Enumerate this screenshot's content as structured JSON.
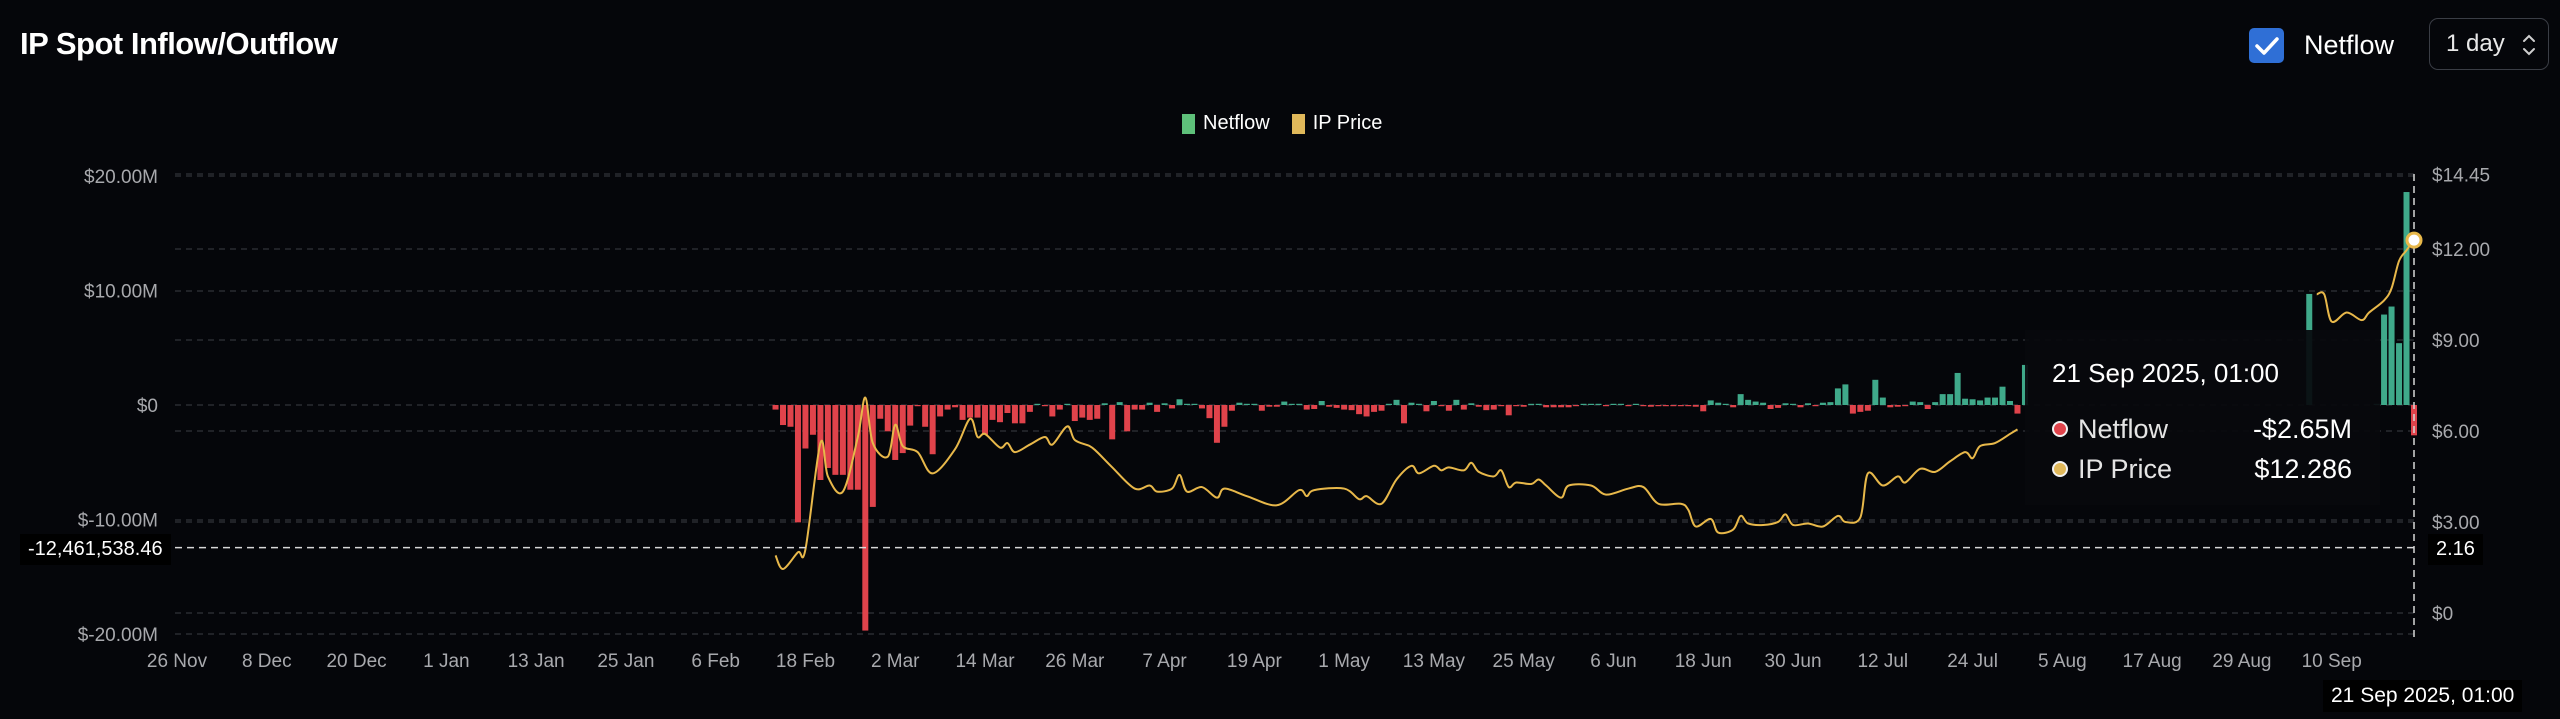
{
  "header": {
    "title": "IP Spot Inflow/Outflow",
    "netflow_toggle": {
      "label": "Netflow",
      "checked": true
    },
    "interval_select": {
      "value": "1 day"
    }
  },
  "colors": {
    "background": "#05060a",
    "netflow_positive": "#3fa98a",
    "netflow_negative": "#e0434b",
    "price_line": "#e8b84a",
    "legend_netflow": "#5ec07a",
    "legend_price": "#e0b85a",
    "checkbox": "#2f6fd6"
  },
  "chart_data": {
    "type": "bar+line",
    "legend": [
      {
        "name": "Netflow",
        "color": "#5ec07a"
      },
      {
        "name": "IP Price",
        "color": "#e0b85a"
      }
    ],
    "legend_placement": "top-center",
    "grid": true,
    "xlim": [
      "2024-11-26",
      "2025-09-21"
    ],
    "x_ticks": [
      "26 Nov",
      "8 Dec",
      "20 Dec",
      "1 Jan",
      "13 Jan",
      "25 Jan",
      "6 Feb",
      "18 Feb",
      "2 Mar",
      "14 Mar",
      "26 Mar",
      "7 Apr",
      "19 Apr",
      "1 May",
      "13 May",
      "25 May",
      "6 Jun",
      "18 Jun",
      "30 Jun",
      "12 Jul",
      "24 Jul",
      "5 Aug",
      "17 Aug",
      "29 Aug",
      "10 Sep"
    ],
    "left_axis": {
      "unit": "USD millions",
      "ylim": [
        -21.5,
        20
      ],
      "ticks": [
        {
          "value": 20,
          "label": "$20.00M"
        },
        {
          "value": 10,
          "label": "$10.00M"
        },
        {
          "value": 0,
          "label": "$0"
        },
        {
          "value": -10,
          "label": "$-10.00M"
        },
        {
          "value": -20,
          "label": "$-20.00M"
        }
      ]
    },
    "right_axis": {
      "unit": "USD",
      "ylim": [
        -0.7,
        14.45
      ],
      "ticks": [
        {
          "value": 14.45,
          "label": "$14.45"
        },
        {
          "value": 12,
          "label": "$12.00"
        },
        {
          "value": 9,
          "label": "$9.00"
        },
        {
          "value": 6,
          "label": "$6.00"
        },
        {
          "value": 3,
          "label": "$3.00"
        },
        {
          "value": 0,
          "label": "$0"
        }
      ]
    },
    "netflow_musd": [
      [
        "2025-02-14",
        -0.4
      ],
      [
        "2025-02-15",
        -1.75
      ],
      [
        "2025-02-16",
        -1.9
      ],
      [
        "2025-02-17",
        -10.25
      ],
      [
        "2025-02-18",
        -3.8
      ],
      [
        "2025-02-19",
        -2.6
      ],
      [
        "2025-02-20",
        -6.55
      ],
      [
        "2025-02-21",
        -5.5
      ],
      [
        "2025-02-22",
        -6.1
      ],
      [
        "2025-02-23",
        -6.1
      ],
      [
        "2025-02-24",
        -7.4
      ],
      [
        "2025-02-25",
        -7.4
      ],
      [
        "2025-02-26",
        -19.7
      ],
      [
        "2025-02-27",
        -8.9
      ],
      [
        "2025-02-28",
        -1.2
      ],
      [
        "2025-03-01",
        -2.3
      ],
      [
        "2025-03-02",
        -4.8
      ],
      [
        "2025-03-03",
        -4.2
      ],
      [
        "2025-03-04",
        -1.8
      ],
      [
        "2025-03-05",
        -0.1
      ],
      [
        "2025-03-06",
        -1.9
      ],
      [
        "2025-03-07",
        -4.3
      ],
      [
        "2025-03-08",
        -1.0
      ],
      [
        "2025-03-09",
        -0.4
      ],
      [
        "2025-03-10",
        -0.2
      ],
      [
        "2025-03-11",
        -1.3
      ],
      [
        "2025-03-12",
        -1.1
      ],
      [
        "2025-03-13",
        -1.1
      ],
      [
        "2025-03-14",
        -2.6
      ],
      [
        "2025-03-15",
        -1.3
      ],
      [
        "2025-03-16",
        -1.5
      ],
      [
        "2025-03-17",
        -0.7
      ],
      [
        "2025-03-18",
        -1.6
      ],
      [
        "2025-03-19",
        -1.6
      ],
      [
        "2025-03-20",
        -0.6
      ],
      [
        "2025-03-21",
        0.1
      ],
      [
        "2025-03-22",
        -0.05
      ],
      [
        "2025-03-23",
        -1.0
      ],
      [
        "2025-03-24",
        -0.4
      ],
      [
        "2025-03-25",
        0.05
      ],
      [
        "2025-03-26",
        -1.4
      ],
      [
        "2025-03-27",
        -1.1
      ],
      [
        "2025-03-28",
        -1.3
      ],
      [
        "2025-03-29",
        -1.2
      ],
      [
        "2025-03-30",
        0.15
      ],
      [
        "2025-03-31",
        -3.0
      ],
      [
        "2025-04-01",
        0.25
      ],
      [
        "2025-04-02",
        -2.3
      ],
      [
        "2025-04-03",
        -0.4
      ],
      [
        "2025-04-04",
        -0.4
      ],
      [
        "2025-04-05",
        0.2
      ],
      [
        "2025-04-06",
        -0.6
      ],
      [
        "2025-04-07",
        0.15
      ],
      [
        "2025-04-08",
        -0.3
      ],
      [
        "2025-04-09",
        0.5
      ],
      [
        "2025-04-10",
        0.05
      ],
      [
        "2025-04-11",
        0
      ],
      [
        "2025-04-12",
        -0.3
      ],
      [
        "2025-04-13",
        -1.15
      ],
      [
        "2025-04-14",
        -3.3
      ],
      [
        "2025-04-15",
        -1.9
      ],
      [
        "2025-04-16",
        -0.5
      ],
      [
        "2025-04-17",
        0.2
      ],
      [
        "2025-04-18",
        0.05
      ],
      [
        "2025-04-19",
        0.05
      ],
      [
        "2025-04-20",
        -0.5
      ],
      [
        "2025-04-21",
        -0.15
      ],
      [
        "2025-04-22",
        -0.15
      ],
      [
        "2025-04-23",
        0.3
      ],
      [
        "2025-04-24",
        0
      ],
      [
        "2025-04-25",
        0
      ],
      [
        "2025-04-26",
        -0.4
      ],
      [
        "2025-04-27",
        -0.35
      ],
      [
        "2025-04-28",
        0.35
      ],
      [
        "2025-04-29",
        -0.15
      ],
      [
        "2025-04-30",
        -0.25
      ],
      [
        "2025-05-01",
        -0.4
      ],
      [
        "2025-05-02",
        -0.45
      ],
      [
        "2025-05-03",
        -0.8
      ],
      [
        "2025-05-04",
        -1.0
      ],
      [
        "2025-05-05",
        -0.6
      ],
      [
        "2025-05-06",
        -0.5
      ],
      [
        "2025-05-07",
        0.05
      ],
      [
        "2025-05-08",
        0.45
      ],
      [
        "2025-05-09",
        -1.6
      ],
      [
        "2025-05-10",
        0.2
      ],
      [
        "2025-05-11",
        0.05
      ],
      [
        "2025-05-12",
        -0.55
      ],
      [
        "2025-05-13",
        0.35
      ],
      [
        "2025-05-14",
        -0.05
      ],
      [
        "2025-05-15",
        -0.5
      ],
      [
        "2025-05-16",
        0.45
      ],
      [
        "2025-05-17",
        -0.4
      ],
      [
        "2025-05-18",
        0.15
      ],
      [
        "2025-05-19",
        -0.15
      ],
      [
        "2025-05-20",
        -0.45
      ],
      [
        "2025-05-21",
        -0.4
      ],
      [
        "2025-05-22",
        -0.1
      ],
      [
        "2025-05-23",
        -0.9
      ],
      [
        "2025-05-24",
        -0.05
      ],
      [
        "2025-05-25",
        -0.15
      ],
      [
        "2025-05-26",
        0.05
      ],
      [
        "2025-05-27",
        0
      ],
      [
        "2025-05-28",
        -0.2
      ],
      [
        "2025-05-29",
        -0.2
      ],
      [
        "2025-05-30",
        -0.2
      ],
      [
        "2025-05-31",
        -0.2
      ],
      [
        "2025-06-01",
        -0.05
      ],
      [
        "2025-06-02",
        0
      ],
      [
        "2025-06-03",
        0.05
      ],
      [
        "2025-06-04",
        0.05
      ],
      [
        "2025-06-05",
        -0.1
      ],
      [
        "2025-06-06",
        0.05
      ],
      [
        "2025-06-07",
        0.05
      ],
      [
        "2025-06-08",
        -0.05
      ],
      [
        "2025-06-09",
        0.1
      ],
      [
        "2025-06-10",
        -0.05
      ],
      [
        "2025-06-11",
        -0.15
      ],
      [
        "2025-06-12",
        -0.1
      ],
      [
        "2025-06-13",
        -0.1
      ],
      [
        "2025-06-14",
        -0.05
      ],
      [
        "2025-06-15",
        -0.1
      ],
      [
        "2025-06-16",
        -0.1
      ],
      [
        "2025-06-17",
        -0.15
      ],
      [
        "2025-06-18",
        -0.55
      ],
      [
        "2025-06-19",
        0.4
      ],
      [
        "2025-06-20",
        0.2
      ],
      [
        "2025-06-21",
        0
      ],
      [
        "2025-06-22",
        -0.2
      ],
      [
        "2025-06-23",
        0.95
      ],
      [
        "2025-06-24",
        0.45
      ],
      [
        "2025-06-25",
        0.3
      ],
      [
        "2025-06-26",
        0.2
      ],
      [
        "2025-06-27",
        -0.35
      ],
      [
        "2025-06-28",
        -0.25
      ],
      [
        "2025-06-29",
        0.15
      ],
      [
        "2025-06-30",
        0.1
      ],
      [
        "2025-07-01",
        -0.2
      ],
      [
        "2025-07-02",
        0.15
      ],
      [
        "2025-07-03",
        -0.05
      ],
      [
        "2025-07-04",
        0.2
      ],
      [
        "2025-07-05",
        0.25
      ],
      [
        "2025-07-06",
        1.45
      ],
      [
        "2025-07-07",
        1.8
      ],
      [
        "2025-07-08",
        -0.75
      ],
      [
        "2025-07-09",
        -0.6
      ],
      [
        "2025-07-10",
        -0.5
      ],
      [
        "2025-07-11",
        2.2
      ],
      [
        "2025-07-12",
        0.65
      ],
      [
        "2025-07-13",
        -0.2
      ],
      [
        "2025-07-14",
        -0.15
      ],
      [
        "2025-07-15",
        -0.05
      ],
      [
        "2025-07-16",
        0.3
      ],
      [
        "2025-07-17",
        0.25
      ],
      [
        "2025-07-18",
        -0.35
      ],
      [
        "2025-07-19",
        0.25
      ],
      [
        "2025-07-20",
        0.95
      ],
      [
        "2025-07-21",
        0.95
      ],
      [
        "2025-07-22",
        2.8
      ],
      [
        "2025-07-23",
        0.55
      ],
      [
        "2025-07-24",
        0.5
      ],
      [
        "2025-07-25",
        0.4
      ],
      [
        "2025-07-26",
        0.65
      ],
      [
        "2025-07-27",
        0.65
      ],
      [
        "2025-07-28",
        1.6
      ],
      [
        "2025-07-29",
        0.35
      ],
      [
        "2025-07-30",
        -0.75
      ],
      [
        "2025-07-31",
        3.5
      ],
      [
        "2025-09-07",
        9.7
      ],
      [
        "2025-09-16",
        0.1
      ],
      [
        "2025-09-17",
        7.9
      ],
      [
        "2025-09-18",
        8.6
      ],
      [
        "2025-09-19",
        5.4
      ],
      [
        "2025-09-20",
        18.6
      ],
      [
        "2025-09-21",
        -2.65
      ]
    ],
    "ip_price_usd": [
      [
        "2025-02-14",
        1.9
      ],
      [
        "2025-02-15",
        1.45
      ],
      [
        "2025-02-17",
        2.0
      ],
      [
        "2025-02-18",
        2.1
      ],
      [
        "2025-02-20",
        5.6
      ],
      [
        "2025-02-21",
        4.5
      ],
      [
        "2025-02-23",
        4.0
      ],
      [
        "2025-02-25",
        5.8
      ],
      [
        "2025-02-26",
        7.1
      ],
      [
        "2025-02-27",
        5.6
      ],
      [
        "2025-03-01",
        5.15
      ],
      [
        "2025-03-02",
        6.2
      ],
      [
        "2025-03-03",
        5.5
      ],
      [
        "2025-03-05",
        5.3
      ],
      [
        "2025-03-07",
        4.6
      ],
      [
        "2025-03-10",
        5.4
      ],
      [
        "2025-03-12",
        6.4
      ],
      [
        "2025-03-13",
        5.8
      ],
      [
        "2025-03-14",
        5.9
      ],
      [
        "2025-03-16",
        5.45
      ],
      [
        "2025-03-17",
        5.6
      ],
      [
        "2025-03-18",
        5.3
      ],
      [
        "2025-03-20",
        5.55
      ],
      [
        "2025-03-22",
        5.8
      ],
      [
        "2025-03-23",
        5.55
      ],
      [
        "2025-03-25",
        6.15
      ],
      [
        "2025-03-26",
        5.7
      ],
      [
        "2025-03-28",
        5.5
      ],
      [
        "2025-03-29",
        5.3
      ],
      [
        "2025-03-31",
        4.8
      ],
      [
        "2025-04-03",
        4.1
      ],
      [
        "2025-04-05",
        4.2
      ],
      [
        "2025-04-06",
        4.0
      ],
      [
        "2025-04-08",
        4.1
      ],
      [
        "2025-04-09",
        4.55
      ],
      [
        "2025-04-10",
        4.0
      ],
      [
        "2025-04-12",
        4.15
      ],
      [
        "2025-04-14",
        3.8
      ],
      [
        "2025-04-15",
        4.1
      ],
      [
        "2025-04-18",
        3.85
      ],
      [
        "2025-04-22",
        3.55
      ],
      [
        "2025-04-25",
        4.05
      ],
      [
        "2025-04-26",
        3.85
      ],
      [
        "2025-04-27",
        4.05
      ],
      [
        "2025-05-01",
        4.1
      ],
      [
        "2025-05-03",
        3.75
      ],
      [
        "2025-05-04",
        3.85
      ],
      [
        "2025-05-06",
        3.6
      ],
      [
        "2025-05-08",
        4.4
      ],
      [
        "2025-05-10",
        4.85
      ],
      [
        "2025-05-11",
        4.6
      ],
      [
        "2025-05-13",
        4.85
      ],
      [
        "2025-05-14",
        4.7
      ],
      [
        "2025-05-15",
        4.8
      ],
      [
        "2025-05-17",
        4.7
      ],
      [
        "2025-05-18",
        4.95
      ],
      [
        "2025-05-19",
        4.65
      ],
      [
        "2025-05-21",
        4.5
      ],
      [
        "2025-05-22",
        4.7
      ],
      [
        "2025-05-23",
        4.15
      ],
      [
        "2025-05-24",
        4.3
      ],
      [
        "2025-05-26",
        4.25
      ],
      [
        "2025-05-27",
        4.4
      ],
      [
        "2025-05-28",
        4.2
      ],
      [
        "2025-05-30",
        3.8
      ],
      [
        "2025-05-31",
        4.2
      ],
      [
        "2025-06-03",
        4.2
      ],
      [
        "2025-06-05",
        3.9
      ],
      [
        "2025-06-08",
        4.1
      ],
      [
        "2025-06-10",
        4.15
      ],
      [
        "2025-06-12",
        3.6
      ],
      [
        "2025-06-15",
        3.6
      ],
      [
        "2025-06-16",
        3.4
      ],
      [
        "2025-06-17",
        2.85
      ],
      [
        "2025-06-19",
        3.1
      ],
      [
        "2025-06-20",
        2.65
      ],
      [
        "2025-06-22",
        2.75
      ],
      [
        "2025-06-23",
        3.2
      ],
      [
        "2025-06-24",
        2.95
      ],
      [
        "2025-06-26",
        2.9
      ],
      [
        "2025-06-28",
        3.0
      ],
      [
        "2025-06-29",
        3.25
      ],
      [
        "2025-06-30",
        2.9
      ],
      [
        "2025-07-02",
        2.95
      ],
      [
        "2025-07-04",
        2.85
      ],
      [
        "2025-07-06",
        3.2
      ],
      [
        "2025-07-07",
        3.0
      ],
      [
        "2025-07-09",
        3.15
      ],
      [
        "2025-07-10",
        4.6
      ],
      [
        "2025-07-12",
        4.2
      ],
      [
        "2025-07-14",
        4.5
      ],
      [
        "2025-07-15",
        4.3
      ],
      [
        "2025-07-17",
        4.75
      ],
      [
        "2025-07-19",
        4.65
      ],
      [
        "2025-07-21",
        5.0
      ],
      [
        "2025-07-23",
        5.3
      ],
      [
        "2025-07-24",
        5.1
      ],
      [
        "2025-07-25",
        5.5
      ],
      [
        "2025-07-27",
        5.6
      ],
      [
        "2025-07-29",
        5.9
      ],
      [
        "2025-07-30",
        6.05
      ],
      [
        "2025-09-08",
        10.5
      ],
      [
        "2025-09-09",
        10.5
      ],
      [
        "2025-09-10",
        9.6
      ],
      [
        "2025-09-12",
        9.9
      ],
      [
        "2025-09-14",
        9.65
      ],
      [
        "2025-09-15",
        9.9
      ],
      [
        "2025-09-17",
        10.3
      ],
      [
        "2025-09-18",
        10.7
      ],
      [
        "2025-09-19",
        11.6
      ],
      [
        "2025-09-20",
        11.95
      ],
      [
        "2025-09-21",
        12.286
      ]
    ],
    "crosshair": {
      "left_label": "-12,461,538.46",
      "left_value_musd": -12.4615,
      "right_label": "2.16",
      "date_label": "21 Sep 2025, 01:00",
      "date": "2025-09-21"
    },
    "tooltip": {
      "title": "21 Sep 2025, 01:00",
      "rows": [
        {
          "name": "Netflow",
          "value": "-$2.65M",
          "dot_color": "#e0434b"
        },
        {
          "name": "IP Price",
          "value": "$12.286",
          "dot_color": "#e0b85a"
        }
      ]
    }
  }
}
